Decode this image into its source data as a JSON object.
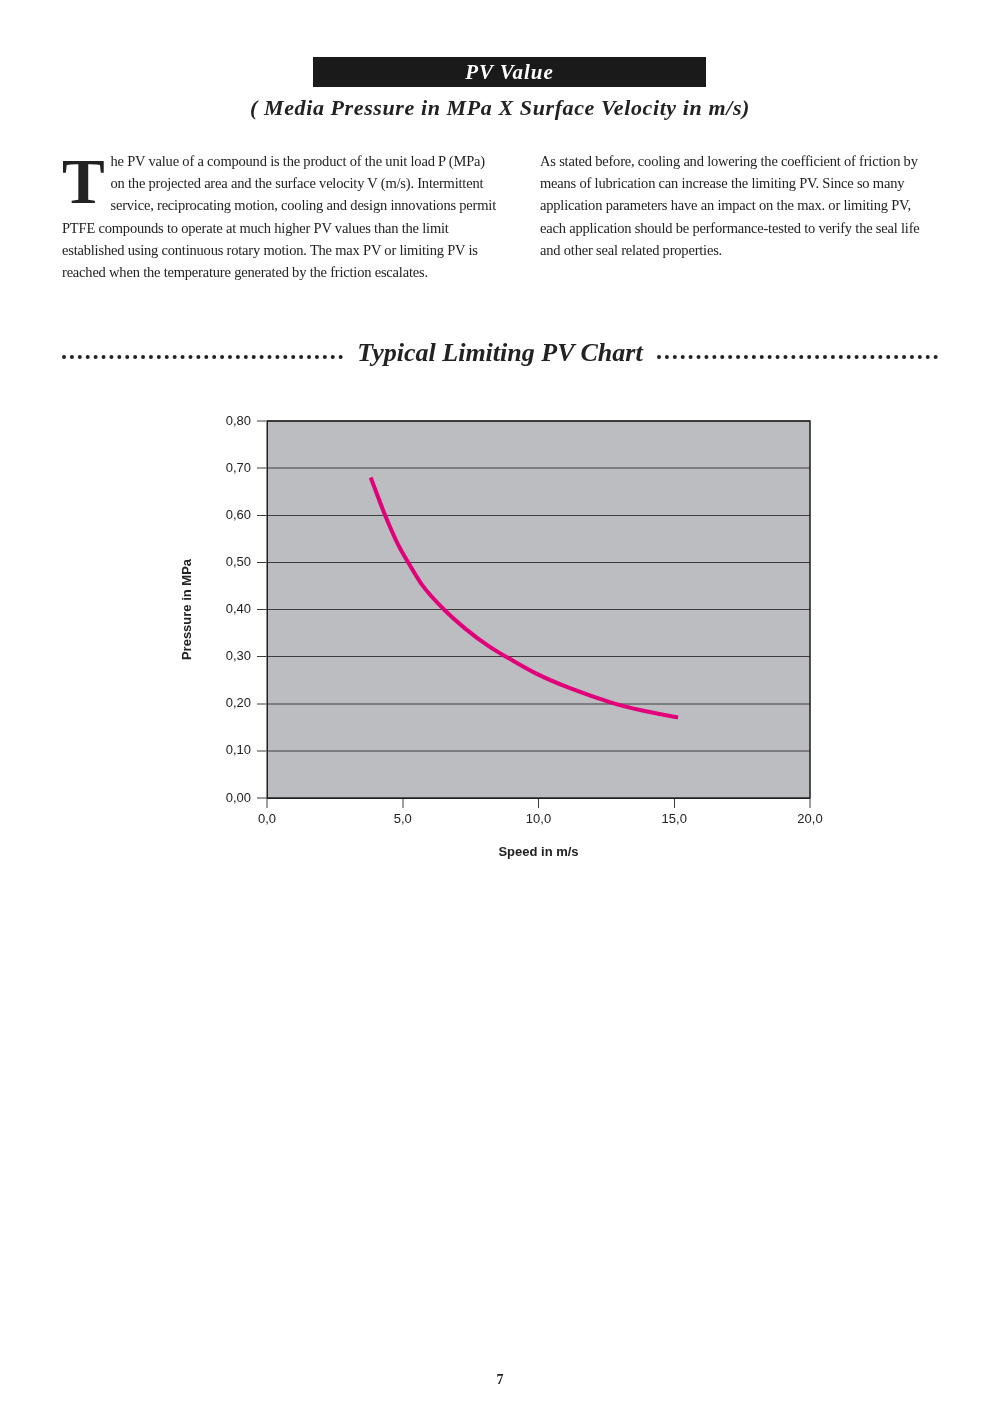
{
  "chart_data": {
    "type": "line",
    "title": "PV Value",
    "subtitle": "( Media Pressure in MPa X Surface Velocity in m/s)",
    "annotations": [
      "The PV value of a compound is the product of the unit load P (MPa) on the projected area and the surface velocity V (m/s). Intermittent service, reciprocating motion, cooling and design innovations permit PTFE compounds to operate at much higher PV values than the limit established using continuous rotary motion. The max PV or limiting PV is reached when the temperature generated by the friction escalates.",
      "As stated before, cooling and lowering the coefficient of friction by means of lubrication can increase the limiting PV. Since so many application parameters have an impact on the max. or limiting PV, each application should be performance-tested to verify the seal life and other seal related properties.",
      "Typical Limiting PV Chart",
      "7"
    ],
    "xlabel": "Speed in m/s",
    "ylabel": "Pressure in MPa",
    "x": [
      3.82,
      4.35,
      4.81,
      5.2,
      5.74,
      6.52,
      7.29,
      8.22,
      8.92,
      9.92,
      11.16,
      12.71,
      13.95,
      15.14
    ],
    "series": [
      {
        "color": "#e2007a",
        "values": [
          0.68,
          0.6,
          0.54,
          0.5,
          0.45,
          0.4,
          0.36,
          0.32,
          0.296,
          0.264,
          0.233,
          0.202,
          0.184,
          0.171
        ]
      }
    ],
    "xlim": [
      0,
      20
    ],
    "ylim": [
      0,
      0.8
    ],
    "xticks": [
      {
        "value": 0,
        "label": "0,0"
      },
      {
        "value": 5,
        "label": "5,0"
      },
      {
        "value": 10,
        "label": "10,0"
      },
      {
        "value": 15,
        "label": "15,0"
      },
      {
        "value": 20,
        "label": "20,0"
      }
    ],
    "yticks": [
      {
        "value": 0,
        "label": "0,00"
      },
      {
        "value": 0.1,
        "label": "0,10"
      },
      {
        "value": 0.2,
        "label": "0,20"
      },
      {
        "value": 0.3,
        "label": "0,30"
      },
      {
        "value": 0.4,
        "label": "0,40"
      },
      {
        "value": 0.5,
        "label": "0,50"
      },
      {
        "value": 0.6,
        "label": "0,60"
      },
      {
        "value": 0.7,
        "label": "0,70"
      },
      {
        "value": 0.8,
        "label": "0,80"
      }
    ],
    "grid": "y",
    "legend": false,
    "marker": "none",
    "line_style": "solid"
  }
}
